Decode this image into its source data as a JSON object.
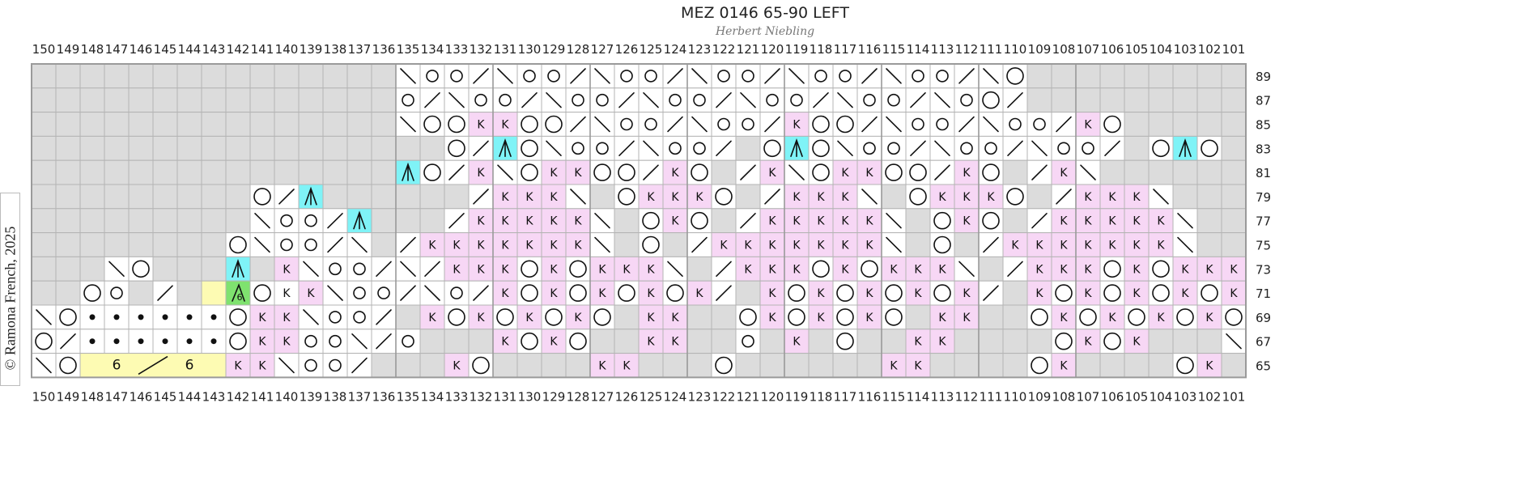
{
  "title": "MEZ 0146 65-90 LEFT",
  "designer": "Herbert Niebling",
  "copyright": "© Ramona French, 2025",
  "column_numbers": [
    150,
    149,
    148,
    147,
    146,
    145,
    144,
    143,
    142,
    141,
    140,
    139,
    138,
    137,
    136,
    135,
    134,
    133,
    132,
    131,
    130,
    129,
    128,
    127,
    126,
    125,
    124,
    123,
    122,
    121,
    120,
    119,
    118,
    117,
    116,
    115,
    114,
    113,
    112,
    111,
    110,
    109,
    108,
    107,
    106,
    105,
    104,
    103,
    102,
    101
  ],
  "row_numbers": [
    "89",
    "87",
    "85",
    "83",
    "81",
    "79",
    "77",
    "75",
    "73",
    "71",
    "69",
    "67",
    "65"
  ],
  "legend_colors": {
    "no_stitch": "#dcdcdc",
    "knit_pink": "#f7d7f5",
    "cyan": "#7ff3f7",
    "green": "#7fe26f",
    "yellow": "#fdfbb3"
  },
  "rows": [
    "GGGGGGGGGGGGGGGBOO/BOO/BOO/BOO/BOO/BOO/BLGGGGGG",
    "GGGGGGGGGGGGGGGO/BOO/BOO/BOO/BOO/BOO/BOL/GGGGGG",
    "GGGGGGGGGGGGGGGBLLkkLL/BOO/BOO/kLL/BOO/BOO/kLGGGGGG",
    "GGGGGGGGGGGGGGGGGL/^LBOO/BOO/GL^LBOO/BOO/BOO/GL^LGGGGGG",
    "GGGGGGGGGGGGGGG^L/kBLkkLL/kLG/kBLkkLL/kLG/kBGGGGGG",
    "GGGGGGGGGL/^GGGGGG/kkkBGLkkkLG/kkkBGLkkkLG/kkkBGGGGG",
    "GGGGGGGGGBOO/^GGG/kkkkkBGLkLG/kkkkkBGLkLG/kkkkkBGGGG",
    "GGGGGGGGLBOO/BG/kkkkkkkBGLG/kkkkkkkBGLG/kkkkkkkBGGG",
    "GGGBLGGG^GkBOO/B/kkkLkLkkkBG/kkkLkLkkkBG/kkkLkLkkkBGG",
    "GGLOG/GY6LKkBOO/BO/kLkLkLkLk/GkLkLkLkLk/GkLkLkLkLkB",
    "BLddddddLkkBOO/GkLkLkLkLGkkGGLkLkLkLGkkGGLkLkLkLkL/",
    "L/ddddddLkkOOB/OGGGkLkLGGkkGGOGkGLGGkkGGGGLkLkGGGBLO",
    "BLYYYYYYkkBOO/GGGkLGGGGkkGGGLGGGGGGkkGGGGLkGGGGLkG"
  ]
}
